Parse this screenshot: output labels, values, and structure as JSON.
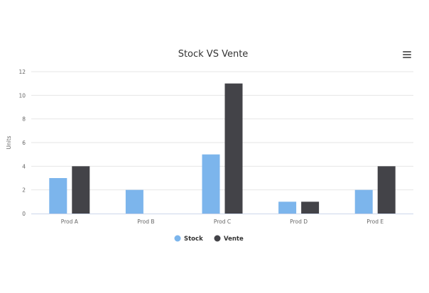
{
  "chart_data": {
    "type": "bar",
    "title": "Stock VS Vente",
    "xlabel": "",
    "ylabel": "Units",
    "categories": [
      "Prod A",
      "Prod B",
      "Prod C",
      "Prod D",
      "Prod E"
    ],
    "series": [
      {
        "name": "Stock",
        "values": [
          3,
          2,
          5,
          1,
          2
        ],
        "color": "#7cb5ec"
      },
      {
        "name": "Vente",
        "values": [
          4,
          0,
          11,
          1,
          4
        ],
        "color": "#434348"
      }
    ],
    "ylim": [
      0,
      12
    ],
    "yticks": [
      0,
      2,
      4,
      6,
      8,
      10,
      12
    ],
    "grid": true,
    "legend": "bottom-center"
  },
  "menu": {
    "icon": "hamburger-menu-icon"
  }
}
